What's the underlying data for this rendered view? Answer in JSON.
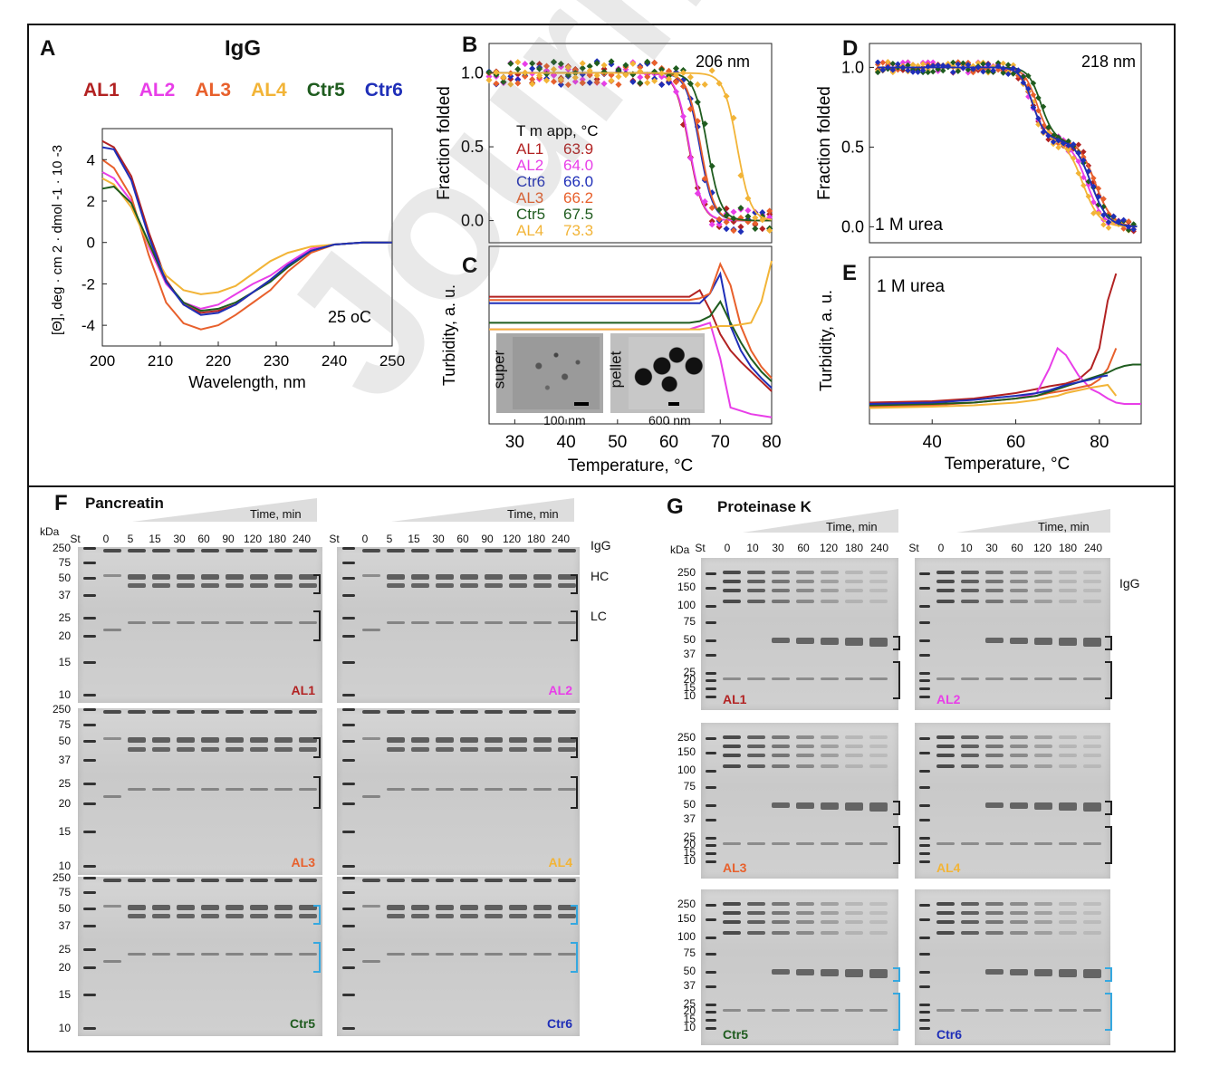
{
  "top_panel": {
    "panel_a": {
      "letter": "A",
      "title": "IgG",
      "legend": [
        {
          "name": "AL1",
          "color": "#b22222"
        },
        {
          "name": "AL2",
          "color": "#e83ee8"
        },
        {
          "name": "AL3",
          "color": "#e8602c"
        },
        {
          "name": "AL4",
          "color": "#f2b437"
        },
        {
          "name": "Ctr5",
          "color": "#1f5c1f"
        },
        {
          "name": "Ctr6",
          "color": "#1f2fb8"
        }
      ],
      "ylabel": "[Θ], deg · cm 2 · dmol -1 · 10 -3",
      "xlabel": "Wavelength, nm",
      "annotation": "25 oC"
    },
    "panel_b": {
      "letter": "B",
      "annotation": "206 nm",
      "ylabel": "Fraction folded",
      "tm_header": "T m app, °C",
      "tm_table": [
        {
          "name": "AL1",
          "value": "63.9",
          "color": "#b22222"
        },
        {
          "name": "AL2",
          "value": "64.0",
          "color": "#e83ee8"
        },
        {
          "name": "Ctr6",
          "value": "66.0",
          "color": "#1f2fb8"
        },
        {
          "name": "AL3",
          "value": "66.2",
          "color": "#e8602c"
        },
        {
          "name": "Ctr5",
          "value": "67.5",
          "color": "#1f5c1f"
        },
        {
          "name": "AL4",
          "value": "73.3",
          "color": "#f2b437"
        }
      ]
    },
    "panel_c": {
      "letter": "C",
      "ylabel": "Turbidity, a. u.",
      "xlabel": "Temperature, °C",
      "inset1_label": "super",
      "inset1_scale": "100 nm",
      "inset2_label": "pellet",
      "inset2_scale": "600 nm"
    },
    "panel_d": {
      "letter": "D",
      "annotation": "218 nm",
      "ylabel": "Fraction folded",
      "note": "1 M urea"
    },
    "panel_e": {
      "letter": "E",
      "ylabel": "Turbidity, a. u.",
      "xlabel": "Temperature, °C",
      "note": "1 M urea"
    }
  },
  "chart_data": [
    {
      "type": "line",
      "panel": "A",
      "xlabel": "Wavelength, nm",
      "ylabel": "[Θ], deg · cm 2 · dmol -1 · 10 -3",
      "xlim": [
        200,
        250
      ],
      "ylim": [
        -5,
        5.5
      ],
      "xticks": [
        "200",
        "210",
        "220",
        "230",
        "240",
        "250"
      ],
      "yticks": [
        "4",
        "2",
        "0",
        "-2",
        "-4"
      ],
      "x": [
        200,
        202,
        205,
        208,
        211,
        214,
        217,
        220,
        223,
        226,
        229,
        232,
        236,
        240,
        245,
        250
      ],
      "series": [
        {
          "name": "AL1",
          "color": "#b22222",
          "values": [
            4.9,
            4.6,
            3.2,
            0.5,
            -1.8,
            -3.0,
            -3.4,
            -3.3,
            -3.0,
            -2.4,
            -1.8,
            -1.1,
            -0.4,
            -0.1,
            0,
            0
          ]
        },
        {
          "name": "AL2",
          "color": "#e83ee8",
          "values": [
            3.4,
            3.1,
            2.0,
            -0.2,
            -2.0,
            -2.9,
            -3.2,
            -3.0,
            -2.5,
            -2.0,
            -1.6,
            -1.0,
            -0.3,
            -0.1,
            0,
            0
          ]
        },
        {
          "name": "AL3",
          "color": "#e8602c",
          "values": [
            4.0,
            3.6,
            2.2,
            -0.6,
            -2.9,
            -3.9,
            -4.2,
            -4.0,
            -3.5,
            -2.9,
            -2.3,
            -1.4,
            -0.5,
            -0.1,
            0,
            0
          ]
        },
        {
          "name": "AL4",
          "color": "#f2b437",
          "values": [
            3.1,
            2.8,
            1.7,
            -0.1,
            -1.6,
            -2.3,
            -2.5,
            -2.4,
            -2.1,
            -1.5,
            -0.9,
            -0.5,
            -0.2,
            -0.1,
            0,
            0
          ]
        },
        {
          "name": "Ctr5",
          "color": "#1f5c1f",
          "values": [
            2.6,
            2.7,
            1.9,
            0,
            -1.9,
            -2.9,
            -3.3,
            -3.2,
            -2.9,
            -2.4,
            -1.9,
            -1.2,
            -0.4,
            -0.1,
            0,
            0
          ]
        },
        {
          "name": "Ctr6",
          "color": "#1f2fb8",
          "values": [
            4.6,
            4.5,
            3.0,
            0.3,
            -1.9,
            -3.0,
            -3.5,
            -3.4,
            -3.0,
            -2.4,
            -1.8,
            -1.1,
            -0.4,
            -0.1,
            0,
            0
          ]
        }
      ]
    },
    {
      "type": "scatter",
      "panel": "B",
      "ylabel": "Fraction folded",
      "xlim": [
        25,
        80
      ],
      "ylim": [
        -0.15,
        1.2
      ],
      "yticks": [
        "1.0",
        "0.5",
        "0.0"
      ],
      "series": [
        {
          "name": "AL1",
          "color": "#b22222",
          "tm": 63.9
        },
        {
          "name": "AL2",
          "color": "#e83ee8",
          "tm": 64.0
        },
        {
          "name": "Ctr6",
          "color": "#1f2fb8",
          "tm": 66.0
        },
        {
          "name": "AL3",
          "color": "#e8602c",
          "tm": 66.2
        },
        {
          "name": "Ctr5",
          "color": "#1f5c1f",
          "tm": 67.5
        },
        {
          "name": "AL4",
          "color": "#f2b437",
          "tm": 73.3
        }
      ]
    },
    {
      "type": "line",
      "panel": "C",
      "xlabel": "Temperature, °C",
      "ylabel": "Turbidity, a. u.",
      "xlim": [
        25,
        80
      ],
      "xticks": [
        "30",
        "40",
        "50",
        "60",
        "70",
        "80"
      ],
      "x": [
        25,
        30,
        40,
        50,
        60,
        64,
        66,
        68,
        70,
        72,
        74,
        76,
        78,
        80
      ],
      "series": [
        {
          "name": "AL1",
          "color": "#b22222",
          "values": [
            0.78,
            0.78,
            0.78,
            0.78,
            0.78,
            0.78,
            0.82,
            0.7,
            0.55,
            0.45,
            0.38,
            0.32,
            0.26,
            0.2
          ]
        },
        {
          "name": "AL2",
          "color": "#e83ee8",
          "values": [
            0.58,
            0.58,
            0.58,
            0.58,
            0.58,
            0.58,
            0.6,
            0.62,
            0.4,
            0.1,
            0.08,
            0.06,
            0.05,
            0.04
          ]
        },
        {
          "name": "Ctr6",
          "color": "#1f2fb8",
          "values": [
            0.74,
            0.74,
            0.74,
            0.74,
            0.74,
            0.74,
            0.74,
            0.8,
            0.92,
            0.6,
            0.45,
            0.35,
            0.28,
            0.22
          ]
        },
        {
          "name": "AL3",
          "color": "#e8602c",
          "values": [
            0.76,
            0.76,
            0.76,
            0.76,
            0.76,
            0.76,
            0.77,
            0.8,
            0.98,
            0.85,
            0.6,
            0.45,
            0.35,
            0.28
          ]
        },
        {
          "name": "Ctr5",
          "color": "#1f5c1f",
          "values": [
            0.62,
            0.62,
            0.62,
            0.62,
            0.62,
            0.62,
            0.63,
            0.66,
            0.75,
            0.62,
            0.5,
            0.4,
            0.32,
            0.26
          ]
        },
        {
          "name": "AL4",
          "color": "#f2b437",
          "values": [
            0.58,
            0.58,
            0.58,
            0.58,
            0.58,
            0.58,
            0.58,
            0.59,
            0.6,
            0.6,
            0.61,
            0.62,
            0.75,
            1.0
          ]
        }
      ]
    },
    {
      "type": "scatter",
      "panel": "D",
      "ylabel": "Fraction folded",
      "xlim": [
        25,
        90
      ],
      "ylim": [
        -0.1,
        1.15
      ],
      "yticks": [
        "1.0",
        "0.5",
        "0.0"
      ]
    },
    {
      "type": "line",
      "panel": "E",
      "xlabel": "Temperature, °C",
      "ylabel": "Turbidity, a. u.",
      "xlim": [
        25,
        90
      ],
      "xticks": [
        "40",
        "60",
        "80"
      ],
      "x": [
        25,
        40,
        50,
        60,
        65,
        68,
        70,
        72,
        75,
        78,
        80,
        82,
        84,
        86,
        88,
        90
      ],
      "series": [
        {
          "name": "AL1",
          "color": "#b22222",
          "values": [
            0.05,
            0.06,
            0.08,
            0.12,
            0.15,
            0.17,
            0.18,
            0.19,
            0.22,
            0.3,
            0.45,
            0.8,
            1.0,
            1.0,
            1.0,
            1.0
          ]
        },
        {
          "name": "AL2",
          "color": "#e83ee8",
          "values": [
            0.03,
            0.04,
            0.05,
            0.08,
            0.12,
            0.3,
            0.45,
            0.4,
            0.25,
            0.15,
            0.12,
            0.08,
            0.05,
            0.04,
            0.04,
            0.04
          ]
        },
        {
          "name": "AL3",
          "color": "#e8602c",
          "values": [
            0.02,
            0.03,
            0.05,
            0.08,
            0.1,
            0.12,
            0.13,
            0.14,
            0.16,
            0.18,
            0.22,
            0.3,
            0.45,
            0.45,
            0.45,
            0.45
          ]
        },
        {
          "name": "AL4",
          "color": "#f2b437",
          "values": [
            0.01,
            0.02,
            0.03,
            0.05,
            0.07,
            0.09,
            0.1,
            0.12,
            0.14,
            0.16,
            0.17,
            0.18,
            0.1,
            0.1,
            0.1,
            0.1
          ]
        },
        {
          "name": "Ctr5",
          "color": "#1f5c1f",
          "values": [
            0.03,
            0.04,
            0.05,
            0.08,
            0.1,
            0.13,
            0.15,
            0.17,
            0.2,
            0.23,
            0.25,
            0.27,
            0.3,
            0.32,
            0.33,
            0.33
          ]
        },
        {
          "name": "Ctr6",
          "color": "#1f2fb8",
          "values": [
            0.04,
            0.05,
            0.07,
            0.1,
            0.12,
            0.14,
            0.16,
            0.18,
            0.2,
            0.22,
            0.24,
            0.25,
            0.26,
            0.26,
            0.26,
            0.26
          ]
        }
      ]
    }
  ],
  "panel_f": {
    "letter": "F",
    "title": "Pancreatin",
    "time_label": "Time, min",
    "kda": "kDa",
    "st": "St",
    "lanes": [
      "0",
      "5",
      "15",
      "30",
      "60",
      "90",
      "120",
      "180",
      "240"
    ],
    "mw": [
      "250",
      "75",
      "50",
      "37",
      "25",
      "20",
      "15",
      "10"
    ],
    "band_labels": {
      "igg": "IgG",
      "hc": "HC",
      "lc": "LC"
    },
    "gels": [
      {
        "sample": "AL1",
        "color": "#b22222"
      },
      {
        "sample": "AL2",
        "color": "#e83ee8"
      },
      {
        "sample": "AL3",
        "color": "#e8602c"
      },
      {
        "sample": "AL4",
        "color": "#f2b437"
      },
      {
        "sample": "Ctr5",
        "color": "#1f5c1f"
      },
      {
        "sample": "Ctr6",
        "color": "#1f2fb8"
      }
    ]
  },
  "panel_g": {
    "letter": "G",
    "title": "Proteinase K",
    "time_label": "Time, min",
    "kda": "kDa",
    "st": "St",
    "lanes": [
      "0",
      "10",
      "30",
      "60",
      "120",
      "180",
      "240"
    ],
    "mw": [
      "250",
      "150",
      "100",
      "75",
      "50",
      "37",
      "25",
      "20",
      "15",
      "10"
    ],
    "band_labels": {
      "igg": "IgG"
    },
    "gels": [
      {
        "sample": "AL1",
        "color": "#b22222"
      },
      {
        "sample": "AL2",
        "color": "#e83ee8"
      },
      {
        "sample": "AL3",
        "color": "#e8602c"
      },
      {
        "sample": "AL4",
        "color": "#f2b437"
      },
      {
        "sample": "Ctr5",
        "color": "#1f5c1f"
      },
      {
        "sample": "Ctr6",
        "color": "#1f2fb8"
      }
    ]
  },
  "watermark": "Journal Pre-proofs"
}
